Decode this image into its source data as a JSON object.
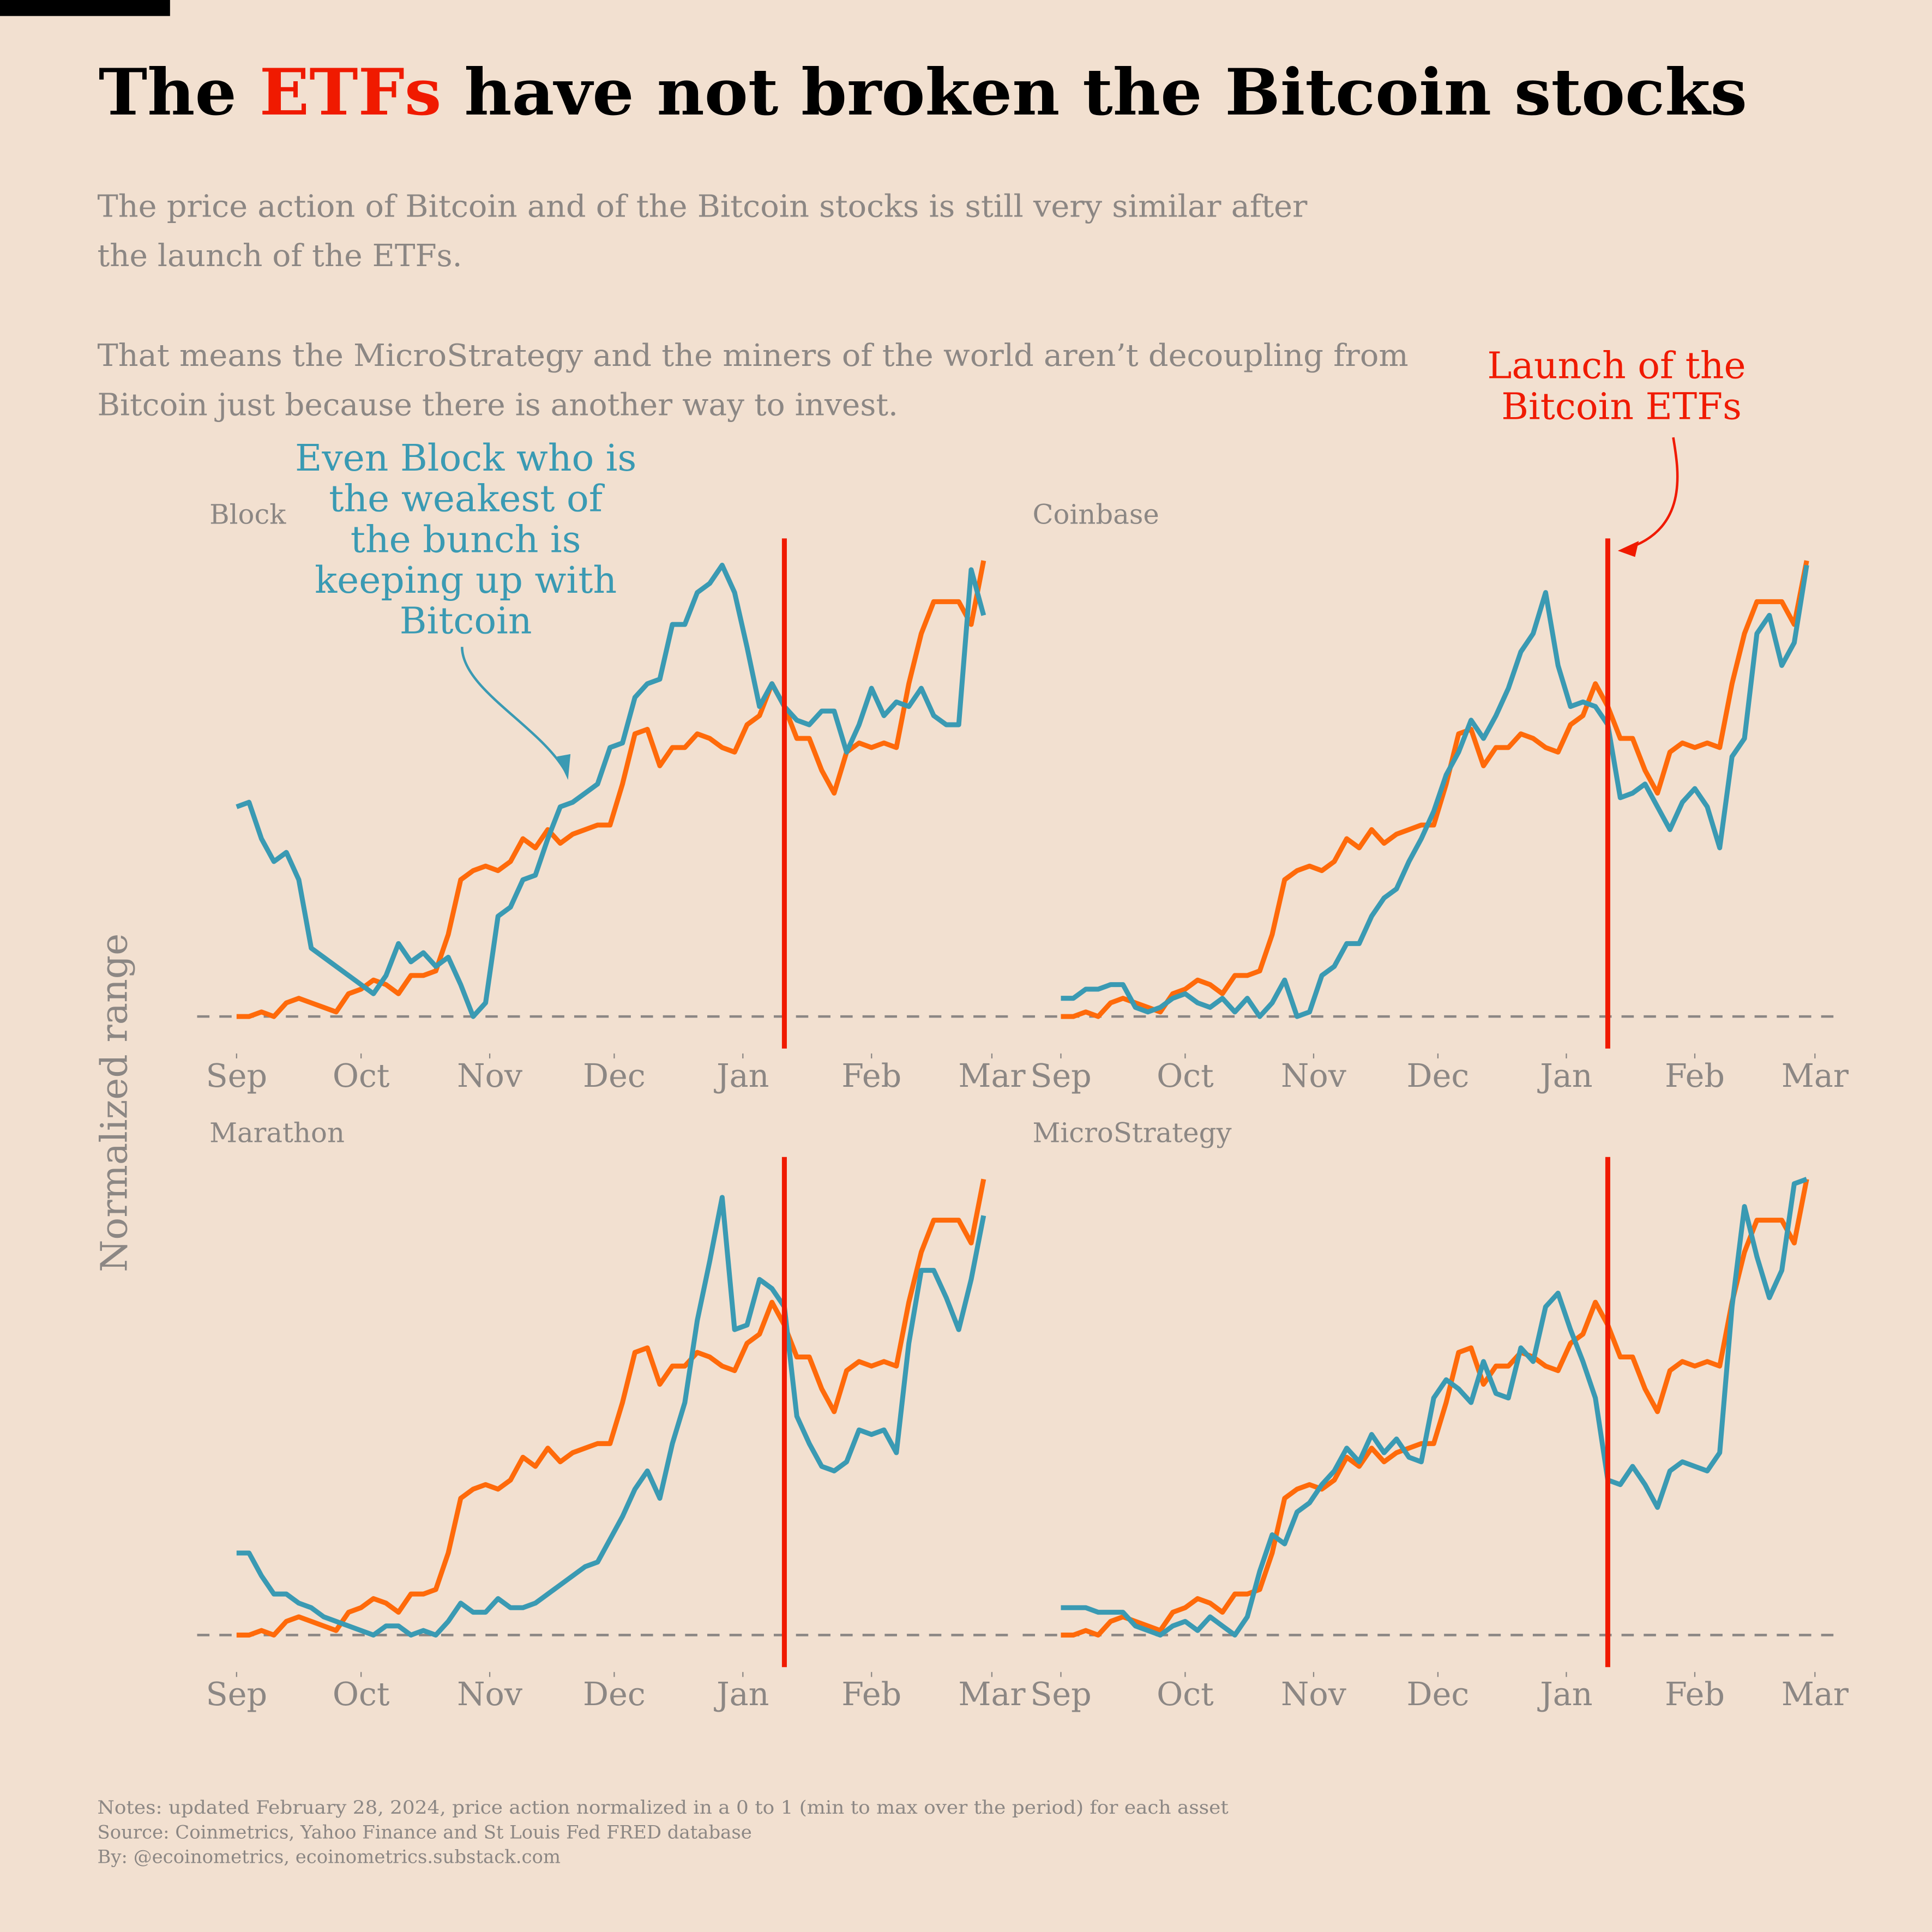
{
  "title": {
    "part1": "The ",
    "highlight": "ETFs",
    "part2": " have not broken the Bitcoin stocks"
  },
  "subtitle": [
    "The price action of Bitcoin and of the Bitcoin stocks is still very similar after",
    "the launch of the ETFs.",
    "That means the MicroStrategy and the miners of the world aren’t decoupling from",
    "Bitcoin just because there is another way to invest."
  ],
  "ylabel": "Normalized range",
  "annotations": {
    "block_note": [
      "Even Block who is",
      "the weakest of",
      "the bunch is",
      "keeping up with",
      "Bitcoin"
    ],
    "etf_note": [
      "Launch of the",
      "Bitcoin ETFs"
    ],
    "etf_date": "2024-01-11"
  },
  "notes": [
    "Notes: updated February 28, 2024, price action normalized in a 0 to 1 (min to max over the period) for each asset",
    "Source: Coinmetrics, Yahoo Finance and St Louis Fed FRED database",
    "By: @ecoinometrics, ecoinometrics.substack.com"
  ],
  "colors": {
    "background": "#f2e0d0",
    "stock": "#3a9ab3",
    "bitcoin": "#ff6a0a",
    "etf_line": "#f01a00",
    "highlight": "#f01a00",
    "text_gray": "#8c8784"
  },
  "chart_data": {
    "type": "line",
    "x_ticks": [
      "Sep",
      "Oct",
      "Nov",
      "Dec",
      "Jan",
      "Feb",
      "Mar"
    ],
    "x_tick_dates": [
      "2023-09-01",
      "2023-10-01",
      "2023-11-01",
      "2023-12-01",
      "2024-01-01",
      "2024-02-01",
      "2024-03-01"
    ],
    "xlim": [
      "2023-09-01",
      "2024-03-01"
    ],
    "ylim": [
      0,
      1
    ],
    "baseline": 0,
    "grid": false,
    "dates": [
      "2023-09-01",
      "2023-09-04",
      "2023-09-07",
      "2023-09-10",
      "2023-09-13",
      "2023-09-16",
      "2023-09-19",
      "2023-09-22",
      "2023-09-25",
      "2023-09-28",
      "2023-10-01",
      "2023-10-04",
      "2023-10-07",
      "2023-10-10",
      "2023-10-13",
      "2023-10-16",
      "2023-10-19",
      "2023-10-22",
      "2023-10-25",
      "2023-10-28",
      "2023-10-31",
      "2023-11-03",
      "2023-11-06",
      "2023-11-09",
      "2023-11-12",
      "2023-11-15",
      "2023-11-18",
      "2023-11-21",
      "2023-11-24",
      "2023-11-27",
      "2023-11-30",
      "2023-12-03",
      "2023-12-06",
      "2023-12-09",
      "2023-12-12",
      "2023-12-15",
      "2023-12-18",
      "2023-12-21",
      "2023-12-24",
      "2023-12-27",
      "2023-12-30",
      "2024-01-02",
      "2024-01-05",
      "2024-01-08",
      "2024-01-11",
      "2024-01-14",
      "2024-01-17",
      "2024-01-20",
      "2024-01-23",
      "2024-01-26",
      "2024-01-29",
      "2024-02-01",
      "2024-02-04",
      "2024-02-07",
      "2024-02-10",
      "2024-02-13",
      "2024-02-16",
      "2024-02-19",
      "2024-02-22",
      "2024-02-25",
      "2024-02-28"
    ],
    "bitcoin": [
      0.0,
      0.0,
      0.01,
      0.0,
      0.03,
      0.04,
      0.03,
      0.02,
      0.01,
      0.05,
      0.06,
      0.08,
      0.07,
      0.05,
      0.09,
      0.09,
      0.1,
      0.18,
      0.3,
      0.32,
      0.33,
      0.32,
      0.34,
      0.39,
      0.37,
      0.41,
      0.38,
      0.4,
      0.41,
      0.42,
      0.42,
      0.51,
      0.62,
      0.63,
      0.55,
      0.59,
      0.59,
      0.62,
      0.61,
      0.59,
      0.58,
      0.64,
      0.66,
      0.73,
      0.68,
      0.61,
      0.61,
      0.54,
      0.49,
      0.58,
      0.6,
      0.59,
      0.6,
      0.59,
      0.73,
      0.84,
      0.91,
      0.91,
      0.91,
      0.86,
      1.0
    ],
    "panels": [
      {
        "title": "Block",
        "values": [
          0.46,
          0.47,
          0.39,
          0.34,
          0.36,
          0.3,
          0.15,
          0.13,
          0.11,
          0.09,
          0.07,
          0.05,
          0.09,
          0.16,
          0.12,
          0.14,
          0.11,
          0.13,
          0.07,
          0.0,
          0.03,
          0.22,
          0.24,
          0.3,
          0.31,
          0.39,
          0.46,
          0.47,
          0.49,
          0.51,
          0.59,
          0.6,
          0.7,
          0.73,
          0.74,
          0.86,
          0.86,
          0.93,
          0.95,
          0.99,
          0.93,
          0.81,
          0.68,
          0.73,
          0.68,
          0.65,
          0.64,
          0.67,
          0.67,
          0.58,
          0.64,
          0.72,
          0.66,
          0.69,
          0.68,
          0.72,
          0.66,
          0.64,
          0.64,
          0.98,
          0.88
        ]
      },
      {
        "title": "Coinbase",
        "values": [
          0.04,
          0.04,
          0.06,
          0.06,
          0.07,
          0.07,
          0.02,
          0.01,
          0.02,
          0.04,
          0.05,
          0.03,
          0.02,
          0.04,
          0.01,
          0.04,
          0.0,
          0.03,
          0.08,
          0.0,
          0.01,
          0.09,
          0.11,
          0.16,
          0.16,
          0.22,
          0.26,
          0.28,
          0.34,
          0.39,
          0.45,
          0.53,
          0.58,
          0.65,
          0.61,
          0.66,
          0.72,
          0.8,
          0.84,
          0.93,
          0.77,
          0.68,
          0.69,
          0.68,
          0.64,
          0.48,
          0.49,
          0.51,
          0.46,
          0.41,
          0.47,
          0.5,
          0.46,
          0.37,
          0.57,
          0.61,
          0.84,
          0.88,
          0.77,
          0.82,
          0.99
        ]
      },
      {
        "title": "Marathon",
        "values": [
          0.18,
          0.18,
          0.13,
          0.09,
          0.09,
          0.07,
          0.06,
          0.04,
          0.03,
          0.02,
          0.01,
          0.0,
          0.02,
          0.02,
          0.0,
          0.01,
          0.0,
          0.03,
          0.07,
          0.05,
          0.05,
          0.08,
          0.06,
          0.06,
          0.07,
          0.09,
          0.11,
          0.13,
          0.15,
          0.16,
          0.21,
          0.26,
          0.32,
          0.36,
          0.3,
          0.42,
          0.51,
          0.69,
          0.82,
          0.96,
          0.67,
          0.68,
          0.78,
          0.76,
          0.72,
          0.48,
          0.42,
          0.37,
          0.36,
          0.38,
          0.45,
          0.44,
          0.45,
          0.4,
          0.64,
          0.8,
          0.8,
          0.74,
          0.67,
          0.78,
          0.92
        ]
      },
      {
        "title": "MicroStrategy",
        "values": [
          0.06,
          0.06,
          0.06,
          0.05,
          0.05,
          0.05,
          0.02,
          0.01,
          0.0,
          0.02,
          0.03,
          0.01,
          0.04,
          0.02,
          0.0,
          0.04,
          0.14,
          0.22,
          0.2,
          0.27,
          0.29,
          0.33,
          0.36,
          0.41,
          0.38,
          0.44,
          0.4,
          0.43,
          0.39,
          0.38,
          0.52,
          0.56,
          0.54,
          0.51,
          0.6,
          0.53,
          0.52,
          0.63,
          0.6,
          0.72,
          0.75,
          0.67,
          0.6,
          0.52,
          0.34,
          0.33,
          0.37,
          0.33,
          0.28,
          0.36,
          0.38,
          0.37,
          0.36,
          0.4,
          0.72,
          0.94,
          0.83,
          0.74,
          0.8,
          0.99,
          1.0
        ]
      }
    ]
  }
}
